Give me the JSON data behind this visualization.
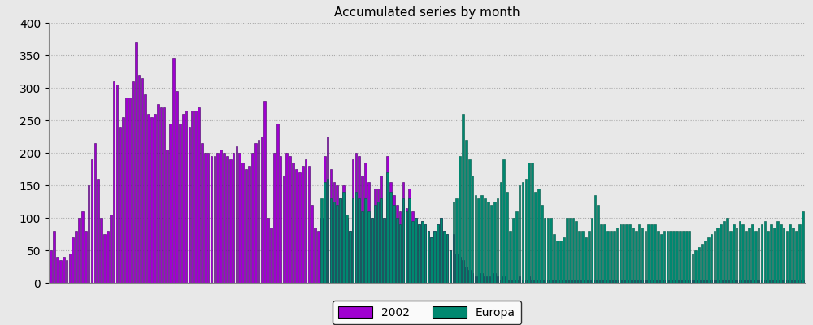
{
  "title": "Accumulated series by month",
  "title_fontsize": 11,
  "background_color": "#e8e8e8",
  "plot_background": "#e8e8e8",
  "ylim": [
    0,
    400
  ],
  "yticks": [
    0,
    50,
    100,
    150,
    200,
    250,
    300,
    350,
    400
  ],
  "color_2002": "#a000d0",
  "color_europa": "#008870",
  "legend_labels": [
    "2002",
    "Europa"
  ],
  "bar_width": 0.7,
  "series_2002": [
    50,
    80,
    40,
    35,
    40,
    35,
    45,
    70,
    80,
    100,
    110,
    80,
    150,
    190,
    215,
    160,
    100,
    75,
    80,
    105,
    310,
    305,
    240,
    255,
    285,
    285,
    310,
    370,
    320,
    315,
    290,
    260,
    255,
    260,
    275,
    270,
    270,
    205,
    245,
    345,
    295,
    245,
    260,
    265,
    240,
    265,
    265,
    270,
    215,
    200,
    200,
    195,
    195,
    200,
    205,
    200,
    195,
    190,
    200,
    210,
    200,
    185,
    175,
    180,
    200,
    215,
    220,
    225,
    280,
    100,
    85,
    200,
    245,
    195,
    165,
    200,
    195,
    185,
    175,
    170,
    180,
    190,
    180,
    120,
    85,
    80,
    100,
    195,
    225,
    175,
    155,
    150,
    130,
    150,
    100,
    80,
    190,
    200,
    195,
    165,
    185,
    155,
    100,
    145,
    145,
    165,
    100,
    195,
    155,
    135,
    120,
    110,
    155,
    115,
    145,
    110,
    100,
    90,
    95,
    90,
    80,
    70,
    80,
    90,
    100,
    80,
    75,
    50,
    75,
    45,
    40,
    35,
    25,
    20,
    15,
    10,
    10,
    15,
    10,
    10,
    10,
    15,
    10,
    5,
    10,
    5,
    5,
    5,
    5,
    10,
    5,
    5,
    10,
    5,
    5,
    5,
    5,
    5,
    5,
    5,
    5,
    5,
    5,
    5,
    5,
    5,
    5,
    5,
    5,
    5,
    5,
    5,
    5,
    5,
    5,
    5,
    5,
    5,
    5,
    5,
    5,
    5,
    5,
    5,
    5,
    5,
    5,
    5,
    5,
    5,
    5,
    5,
    5,
    5,
    5,
    5,
    5,
    5,
    5,
    5,
    5,
    5,
    5,
    5,
    5,
    5,
    5,
    5,
    5,
    5,
    5,
    5,
    5,
    5,
    5,
    5,
    5,
    5,
    5,
    5,
    5,
    5,
    5,
    5,
    5,
    5,
    5,
    5,
    5,
    5,
    5,
    5,
    5,
    5,
    5,
    5,
    5,
    5,
    5,
    5
  ],
  "series_europa": [
    0,
    0,
    0,
    0,
    0,
    0,
    0,
    0,
    0,
    0,
    0,
    0,
    0,
    0,
    0,
    0,
    0,
    0,
    0,
    0,
    0,
    0,
    0,
    0,
    0,
    0,
    0,
    0,
    0,
    0,
    0,
    0,
    0,
    0,
    0,
    0,
    0,
    0,
    0,
    0,
    0,
    0,
    0,
    0,
    0,
    0,
    0,
    0,
    0,
    0,
    0,
    0,
    0,
    0,
    0,
    0,
    0,
    0,
    0,
    0,
    0,
    0,
    0,
    0,
    0,
    0,
    0,
    0,
    0,
    0,
    0,
    0,
    0,
    0,
    0,
    0,
    0,
    0,
    0,
    0,
    0,
    0,
    0,
    0,
    0,
    0,
    130,
    155,
    160,
    130,
    125,
    120,
    130,
    140,
    105,
    80,
    130,
    140,
    130,
    110,
    130,
    110,
    100,
    120,
    125,
    130,
    100,
    170,
    140,
    120,
    100,
    90,
    130,
    110,
    130,
    95,
    100,
    90,
    95,
    90,
    80,
    70,
    80,
    90,
    100,
    80,
    75,
    50,
    125,
    130,
    195,
    260,
    220,
    190,
    165,
    135,
    130,
    135,
    130,
    125,
    120,
    125,
    130,
    155,
    190,
    140,
    80,
    100,
    110,
    150,
    155,
    160,
    185,
    185,
    140,
    145,
    120,
    100,
    100,
    100,
    75,
    65,
    65,
    70,
    100,
    100,
    100,
    95,
    80,
    80,
    70,
    80,
    100,
    135,
    120,
    90,
    90,
    80,
    80,
    80,
    85,
    90,
    90,
    90,
    90,
    85,
    80,
    90,
    85,
    80,
    90,
    90,
    90,
    80,
    75,
    80,
    80,
    80,
    80,
    80,
    80,
    80,
    80,
    80,
    45,
    50,
    55,
    60,
    65,
    70,
    75,
    80,
    85,
    90,
    95,
    100,
    80,
    90,
    85,
    95,
    90,
    80,
    85,
    90,
    80,
    85,
    90,
    95,
    80,
    90,
    85,
    95,
    90,
    85,
    80,
    90,
    85,
    80,
    90,
    110
  ]
}
